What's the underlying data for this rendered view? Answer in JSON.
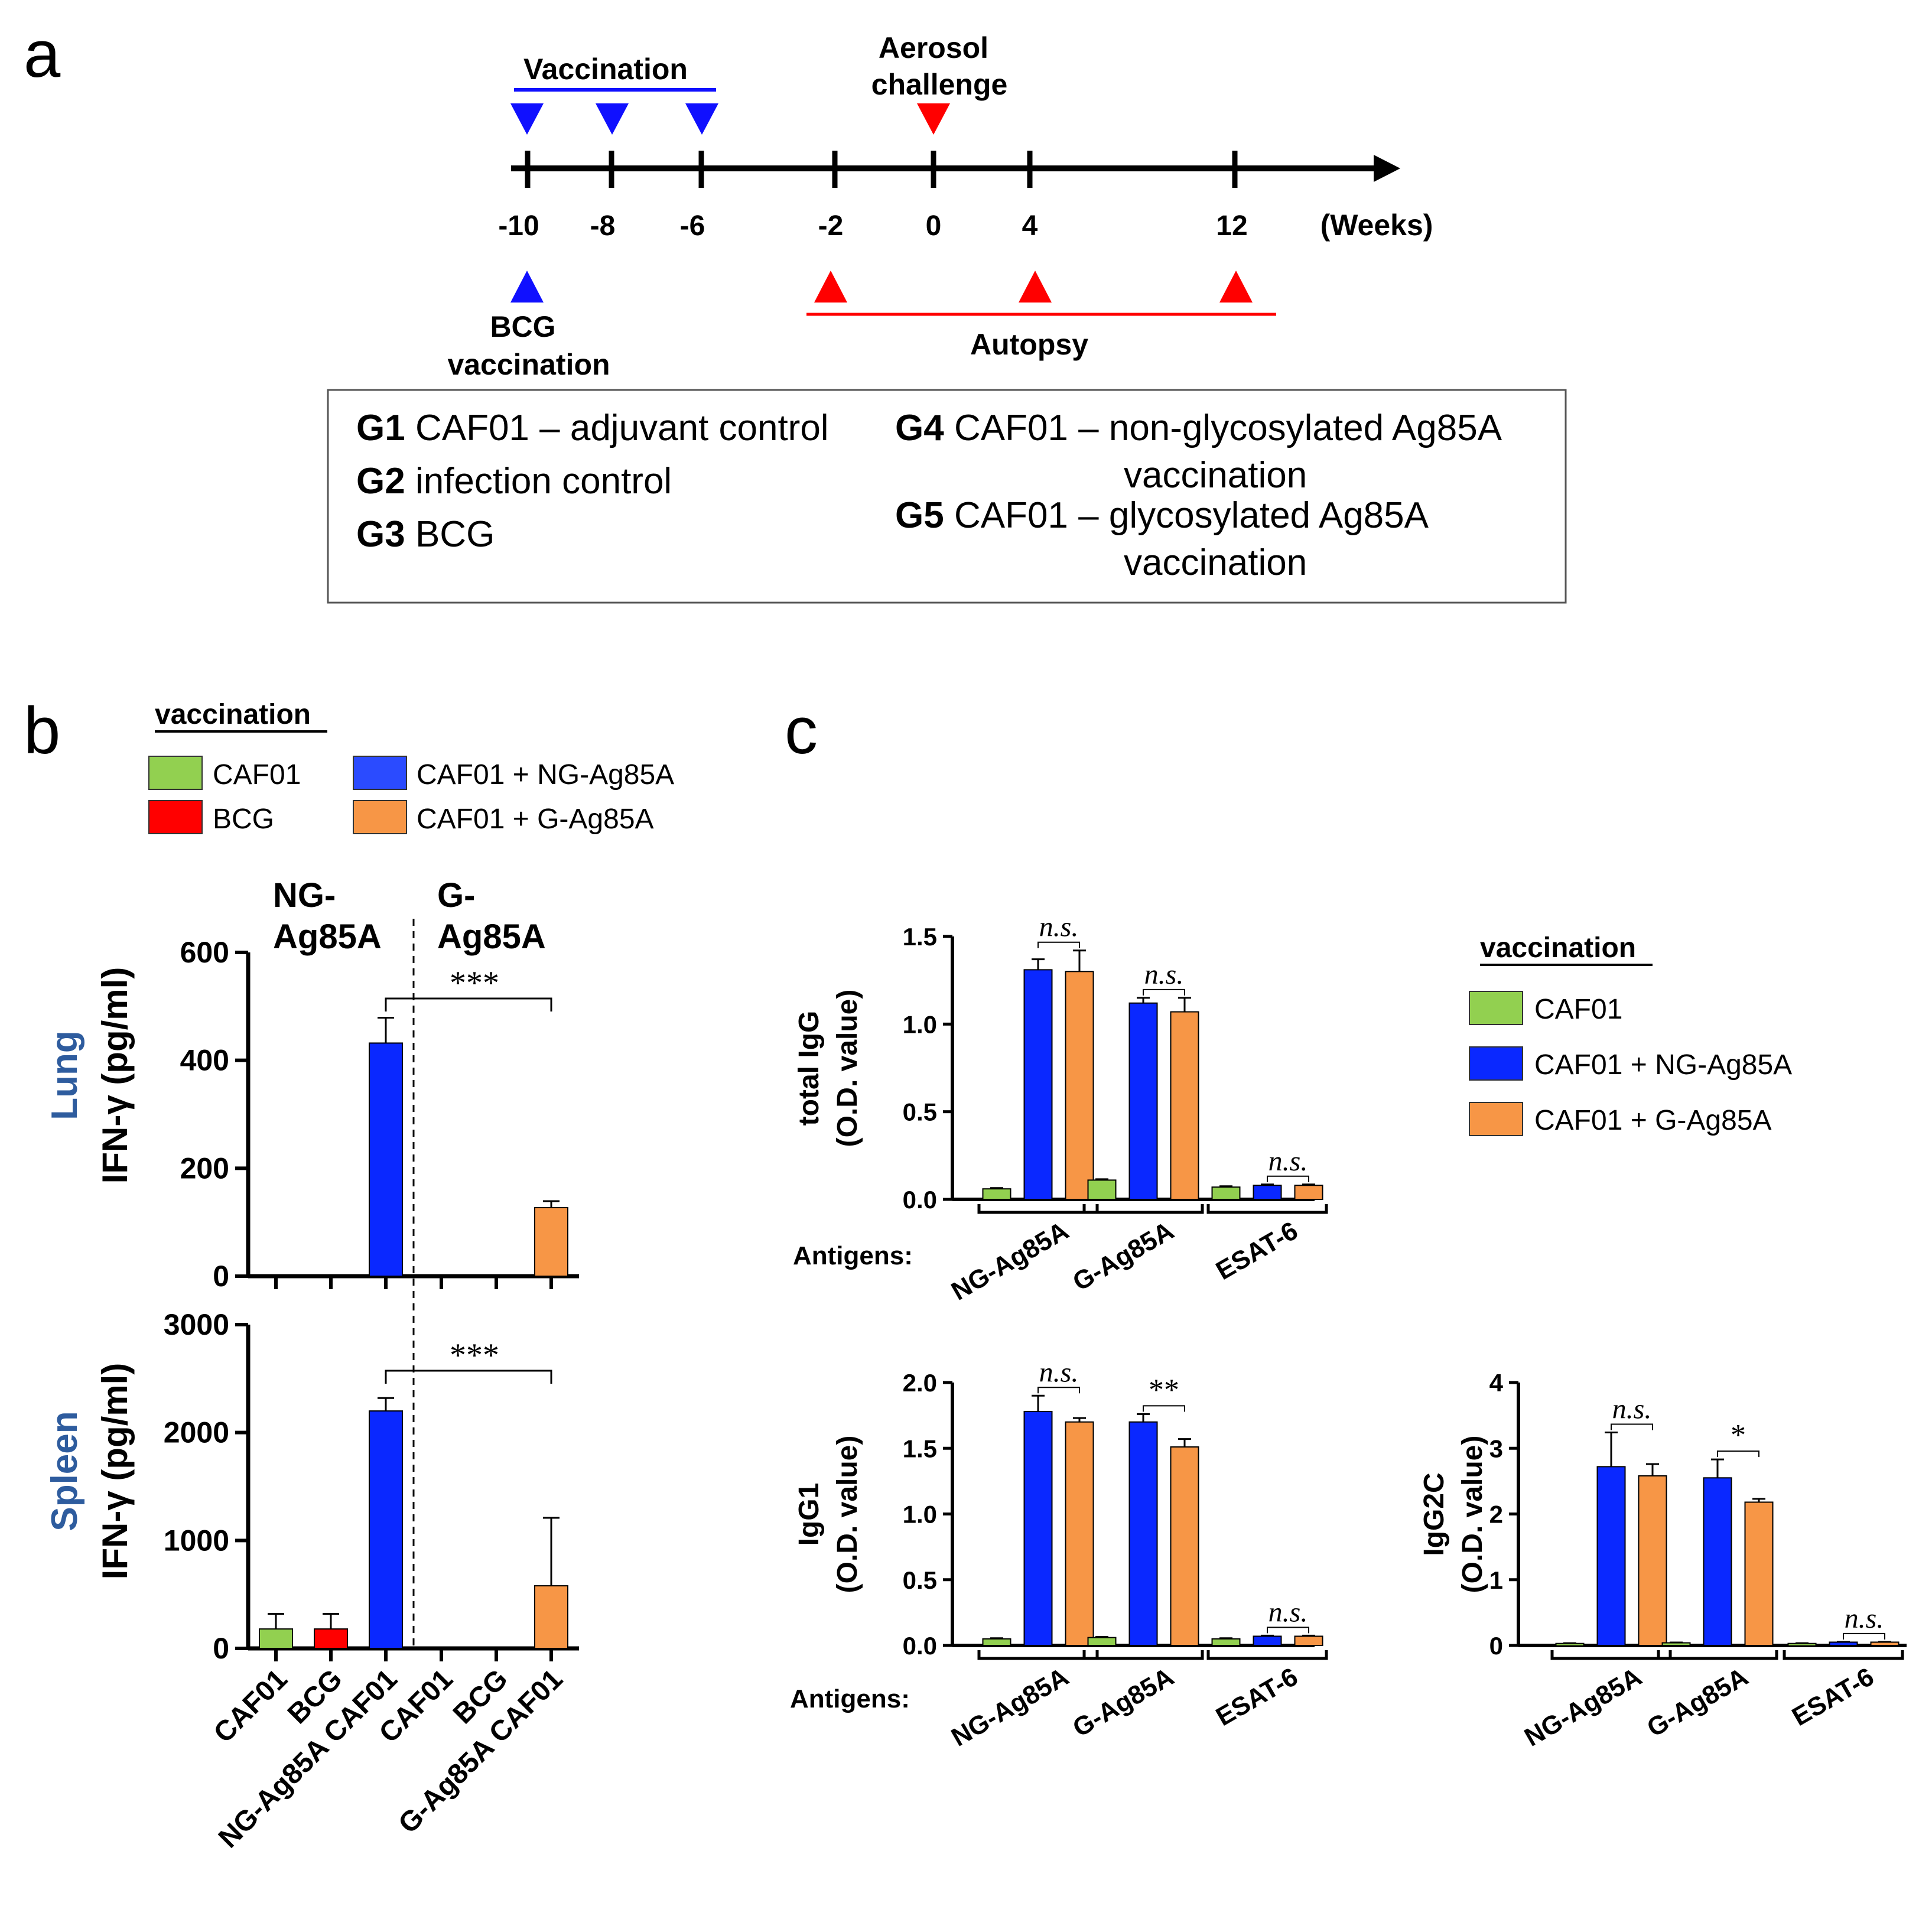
{
  "colors": {
    "caf01": "#92d050",
    "bcg": "#ff0000",
    "ng": "#0a28ff",
    "g": "#f79646",
    "blue_marker": "#1010ff",
    "red_marker": "#ff0000",
    "heading_blue": "#2e5c9e"
  },
  "panel_a": {
    "label": "a",
    "vaccination_label": "Vaccination",
    "aerosol_label_1": "Aerosol",
    "aerosol_label_2": "challenge",
    "ticks": [
      "-10",
      "-8",
      "-6",
      "-2",
      "0",
      "4",
      "12"
    ],
    "unit": "(Weeks)",
    "bcg_label_1": "BCG",
    "bcg_label_2": "vaccination",
    "autopsy_label": "Autopsy",
    "groups": {
      "g1_id": "G1",
      "g1_text": "CAF01 – adjuvant control",
      "g2_id": "G2",
      "g2_text": "infection control",
      "g3_id": "G3",
      "g3_text": "BCG",
      "g4_id": "G4",
      "g4_text": "CAF01 – non-glycosylated Ag85A",
      "g4_text_2": "vaccination",
      "g5_id": "G5",
      "g5_text": "CAF01 – glycosylated Ag85A",
      "g5_text_2": "vaccination"
    }
  },
  "panel_b": {
    "label": "b",
    "legend_title": "vaccination",
    "legend": [
      "CAF01",
      "BCG",
      "CAF01 + NG-Ag85A",
      "CAF01 + G-Ag85A"
    ],
    "section_ng_1": "NG-",
    "section_ng_2": "Ag85A",
    "section_g_1": "G-",
    "section_g_2": "Ag85A",
    "lung_title": "Lung",
    "spleen_title": "Spleen",
    "ylabel": "IFN-γ (pg/ml)",
    "x_labels": [
      "CAF01",
      "BCG",
      "NG-Ag85A CAF01",
      "CAF01",
      "BCG",
      "G-Ag85A CAF01"
    ]
  },
  "panel_c": {
    "label": "c",
    "legend_title": "vaccination",
    "legend": [
      "CAF01",
      "CAF01 + NG-Ag85A",
      "CAF01 + G-Ag85A"
    ],
    "antigens_label": "Antigens:",
    "ylabel_unit": "(O.D. value)"
  },
  "chart_data": [
    {
      "id": "lung",
      "type": "bar",
      "title": "Lung",
      "ylabel": "IFN-γ (pg/ml)",
      "categories": [
        "CAF01",
        "BCG",
        "NG-Ag85A CAF01",
        "CAF01",
        "BCG",
        "G-Ag85A CAF01"
      ],
      "values": [
        0,
        0,
        432,
        0,
        0,
        127
      ],
      "errors": [
        0,
        0,
        47,
        0,
        0,
        12
      ],
      "ylim": [
        0,
        600
      ],
      "yticks": [
        "0",
        "200",
        "400",
        "600"
      ],
      "significance": [
        {
          "label": "***",
          "from": 2,
          "to": 5
        }
      ]
    },
    {
      "id": "spleen",
      "type": "bar",
      "title": "Spleen",
      "ylabel": "IFN-γ (pg/ml)",
      "categories": [
        "CAF01",
        "BCG",
        "NG-Ag85A CAF01",
        "CAF01",
        "BCG",
        "G-Ag85A CAF01"
      ],
      "values": [
        180,
        180,
        2200,
        0,
        0,
        580
      ],
      "errors": [
        140,
        140,
        120,
        0,
        0,
        630
      ],
      "ylim": [
        0,
        3000
      ],
      "yticks": [
        "0",
        "1000",
        "2000",
        "3000"
      ],
      "significance": [
        {
          "label": "***",
          "from": 2,
          "to": 5
        }
      ]
    },
    {
      "id": "total_igg",
      "type": "bar",
      "ylabel": "total IgG",
      "ylabel_unit": "(O.D. value)",
      "categories": [
        "NG-Ag85A",
        "G-Ag85A",
        "ESAT-6"
      ],
      "series": [
        {
          "name": "CAF01",
          "values": [
            0.06,
            0.11,
            0.07
          ],
          "errors": [
            0.005,
            0.005,
            0.005
          ]
        },
        {
          "name": "CAF01 + NG-Ag85A",
          "values": [
            1.31,
            1.12,
            0.08
          ],
          "errors": [
            0.06,
            0.03,
            0.005
          ]
        },
        {
          "name": "CAF01 + G-Ag85A",
          "values": [
            1.3,
            1.07,
            0.08
          ],
          "errors": [
            0.12,
            0.08,
            0.005
          ]
        }
      ],
      "ylim": [
        0,
        1.5
      ],
      "yticks": [
        "0.0",
        "0.5",
        "1.0",
        "1.5"
      ],
      "significance": [
        {
          "label": "n.s.",
          "group": 0
        },
        {
          "label": "n.s.",
          "group": 1
        },
        {
          "label": "n.s.",
          "group": 2
        }
      ]
    },
    {
      "id": "igg1",
      "type": "bar",
      "ylabel": "IgG1",
      "ylabel_unit": "(O.D. value)",
      "categories": [
        "NG-Ag85A",
        "G-Ag85A",
        "ESAT-6"
      ],
      "series": [
        {
          "name": "CAF01",
          "values": [
            0.05,
            0.06,
            0.05
          ],
          "errors": [
            0.005,
            0.005,
            0.005
          ]
        },
        {
          "name": "CAF01 + NG-Ag85A",
          "values": [
            1.78,
            1.7,
            0.07
          ],
          "errors": [
            0.12,
            0.06,
            0.005
          ]
        },
        {
          "name": "CAF01 + G-Ag85A",
          "values": [
            1.7,
            1.51,
            0.07
          ],
          "errors": [
            0.03,
            0.06,
            0.005
          ]
        }
      ],
      "ylim": [
        0,
        2.0
      ],
      "yticks": [
        "0.0",
        "0.5",
        "1.0",
        "1.5",
        "2.0"
      ],
      "significance": [
        {
          "label": "n.s.",
          "group": 0
        },
        {
          "label": "**",
          "group": 1
        },
        {
          "label": "n.s.",
          "group": 2
        }
      ]
    },
    {
      "id": "igg2c",
      "type": "bar",
      "ylabel": "IgG2C",
      "ylabel_unit": "(O.D. value)",
      "categories": [
        "NG-Ag85A",
        "G-Ag85A",
        "ESAT-6"
      ],
      "series": [
        {
          "name": "CAF01",
          "values": [
            0.03,
            0.04,
            0.03
          ],
          "errors": [
            0.005,
            0.005,
            0.005
          ]
        },
        {
          "name": "CAF01 + NG-Ag85A",
          "values": [
            2.72,
            2.55,
            0.05
          ],
          "errors": [
            0.52,
            0.28,
            0.005
          ]
        },
        {
          "name": "CAF01 + G-Ag85A",
          "values": [
            2.58,
            2.18,
            0.05
          ],
          "errors": [
            0.18,
            0.05,
            0.005
          ]
        }
      ],
      "ylim": [
        0,
        4
      ],
      "yticks": [
        "0",
        "1",
        "2",
        "3",
        "4"
      ],
      "significance": [
        {
          "label": "n.s.",
          "group": 0
        },
        {
          "label": "*",
          "group": 1
        },
        {
          "label": "n.s.",
          "group": 2
        }
      ]
    }
  ]
}
